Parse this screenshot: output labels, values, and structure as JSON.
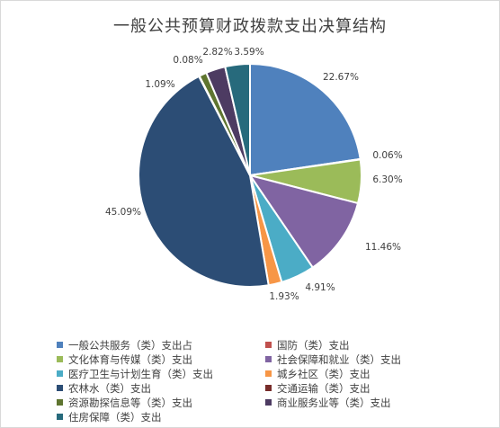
{
  "chart_data": {
    "type": "pie",
    "title": "一般公共预算财政拨款支出决算结构",
    "legend_position": "bottom",
    "slices": [
      {
        "name": "一般公共服务（类）支出占",
        "value": 22.67,
        "label": "22.67%",
        "color": "#4f81bd"
      },
      {
        "name": "国防（类）支出",
        "value": 0.06,
        "label": "0.06%",
        "color": "#c0504d"
      },
      {
        "name": "文化体育与传媒（类）支出",
        "value": 6.3,
        "label": "6.30%",
        "color": "#9bbb59"
      },
      {
        "name": "社会保障和就业（类）支出",
        "value": 11.46,
        "label": "11.46%",
        "color": "#8064a2"
      },
      {
        "name": "医疗卫生与计划生育（类）支出",
        "value": 4.91,
        "label": "4.91%",
        "color": "#4bacc6"
      },
      {
        "name": "城乡社区（类）支出",
        "value": 1.93,
        "label": "1.93%",
        "color": "#f79646"
      },
      {
        "name": "农林水（类）支出",
        "value": 45.09,
        "label": "45.09%",
        "color": "#2c4d75"
      },
      {
        "name": "交通运输（类）支出",
        "value": 0.08,
        "label": "0.08%",
        "color": "#772c2a"
      },
      {
        "name": "资源勘探信息等（类）支出",
        "value": 1.09,
        "label": "1.09%",
        "color": "#5f7530"
      },
      {
        "name": "商业服务业等（类）支出",
        "value": 2.82,
        "label": "2.82%",
        "color": "#4d3b62"
      },
      {
        "name": "住房保障（类）支出",
        "value": 3.59,
        "label": "3.59%",
        "color": "#276a7c"
      }
    ]
  }
}
